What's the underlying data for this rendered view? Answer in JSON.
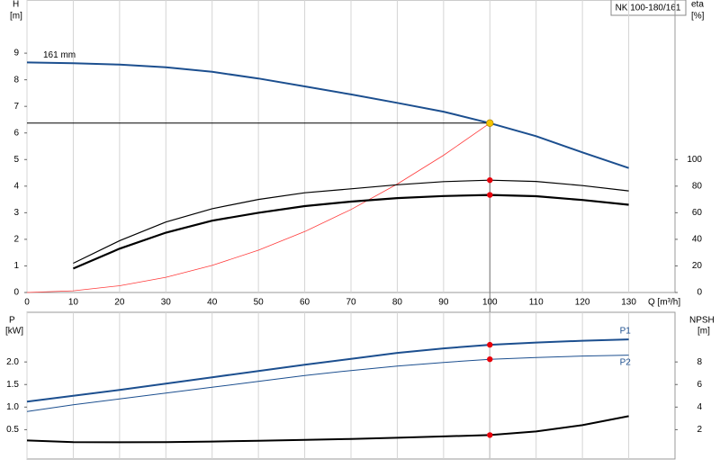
{
  "chart_data": [
    {
      "type": "line",
      "title": "NK 100-180/161",
      "y_label": "H",
      "y_unit": "[m]",
      "y2_label": "eta",
      "y2_unit": "[%]",
      "x_label": "Q [m³/h]",
      "xlim": [
        0,
        140
      ],
      "xticks": [
        0,
        10,
        20,
        30,
        40,
        50,
        60,
        70,
        80,
        90,
        100,
        110,
        120,
        130
      ],
      "ylim": [
        0,
        11
      ],
      "yticks": [
        0,
        1,
        2,
        3,
        4,
        5,
        6,
        7,
        8,
        9
      ],
      "y2lim": [
        0,
        220
      ],
      "y2ticks": [
        0,
        20,
        40,
        60,
        80,
        100
      ],
      "grid": "x",
      "duty_point": {
        "x": 100,
        "y": 6.37,
        "color": "#f5c400"
      },
      "series": [
        {
          "name": "161 mm",
          "color": "#1c4f8f",
          "line_width": 2,
          "x": [
            0,
            10,
            20,
            30,
            40,
            50,
            60,
            70,
            80,
            90,
            100,
            110,
            120,
            130
          ],
          "values": [
            8.65,
            8.62,
            8.57,
            8.47,
            8.3,
            8.05,
            7.75,
            7.45,
            7.13,
            6.8,
            6.37,
            5.88,
            5.27,
            4.68
          ]
        },
        {
          "color": "#ff3b3b",
          "line_width": 0.8,
          "x": [
            0,
            10,
            20,
            30,
            40,
            50,
            60,
            70,
            80,
            90,
            100
          ],
          "values": [
            0,
            0.064,
            0.255,
            0.573,
            1.02,
            1.59,
            2.29,
            3.12,
            4.08,
            5.16,
            6.37
          ]
        },
        {
          "color": "#000000",
          "line_width": 1.2,
          "axis": "y2",
          "dot_color": "#e8000b",
          "x": [
            10,
            20,
            30,
            40,
            50,
            60,
            70,
            80,
            90,
            100,
            110,
            120,
            130
          ],
          "values": [
            22,
            39,
            53,
            63,
            70,
            75,
            78,
            81,
            83.4,
            84.5,
            83.5,
            80.4,
            76.4
          ]
        },
        {
          "color": "#000000",
          "line_width": 2.2,
          "axis": "y2",
          "dot_color": "#e8000b",
          "x": [
            10,
            20,
            30,
            40,
            50,
            60,
            70,
            80,
            90,
            100,
            110,
            120,
            130
          ],
          "values": [
            18,
            33,
            45,
            54,
            60,
            65,
            68.4,
            71,
            72.6,
            73.4,
            72.4,
            69.6,
            66
          ]
        }
      ]
    },
    {
      "type": "line",
      "y_label": "P",
      "y_unit": "[kW]",
      "y2_label": "NPSH",
      "y2_unit": "[m]",
      "xlim": [
        0,
        140
      ],
      "ylim": [
        -0.15,
        3.1
      ],
      "yticks": [
        0.5,
        {
          "value": 1,
          "label": "1.0"
        },
        1.5,
        {
          "value": 2,
          "label": "2.0"
        }
      ],
      "y2lim": [
        -0.6,
        12.4
      ],
      "y2ticks": [
        2,
        4,
        6,
        8
      ],
      "series": [
        {
          "name": "P1",
          "color": "#1c4f8f",
          "line_width": 2,
          "dot_color": "#e8000b",
          "x": [
            0,
            10,
            20,
            30,
            40,
            50,
            60,
            70,
            80,
            90,
            100,
            110,
            120,
            130
          ],
          "values": [
            1.12,
            1.25,
            1.38,
            1.52,
            1.66,
            1.8,
            1.94,
            2.07,
            2.2,
            2.3,
            2.38,
            2.43,
            2.47,
            2.5
          ]
        },
        {
          "name": "P2",
          "color": "#1c4f8f",
          "line_width": 1,
          "dot_color": "#e8000b",
          "x": [
            0,
            10,
            20,
            30,
            40,
            50,
            60,
            70,
            80,
            90,
            100,
            110,
            120,
            130
          ],
          "values": [
            0.9,
            1.05,
            1.18,
            1.31,
            1.44,
            1.57,
            1.7,
            1.81,
            1.91,
            1.99,
            2.06,
            2.1,
            2.13,
            2.15
          ]
        },
        {
          "color": "#000000",
          "line_width": 2,
          "axis": "y2",
          "dot_color": "#e8000b",
          "x": [
            0,
            10,
            20,
            30,
            40,
            50,
            60,
            70,
            80,
            90,
            100,
            110,
            120,
            130
          ],
          "values": [
            1.04,
            0.9,
            0.88,
            0.9,
            0.95,
            1.02,
            1.1,
            1.18,
            1.28,
            1.4,
            1.52,
            1.84,
            2.4,
            3.2
          ]
        }
      ]
    }
  ]
}
